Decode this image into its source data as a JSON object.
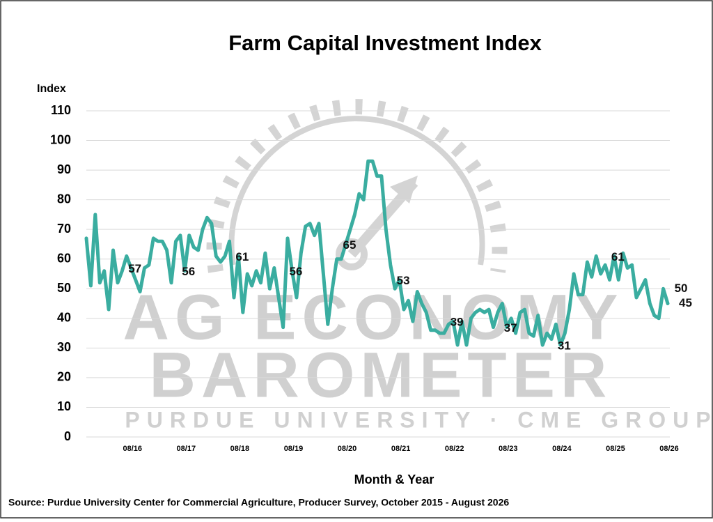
{
  "chart_data": {
    "type": "line",
    "title": "Farm Capital Investment Index",
    "y_axis_label": "Index",
    "x_axis_label": "Month & Year",
    "source": "Source: Purdue University Center for Commercial Agriculture, Producer Survey, October 2015 - August 2026",
    "watermark": [
      "AG ECONOMY",
      "BAROMETER",
      "PURDUE UNIVERSITY · CME GROUP"
    ],
    "ylim": [
      0,
      110
    ],
    "yticks": [
      0,
      10,
      20,
      30,
      40,
      50,
      60,
      70,
      80,
      90,
      100,
      110
    ],
    "grid": true,
    "categories": [
      null,
      null,
      null,
      null,
      null,
      null,
      null,
      null,
      null,
      null,
      "08/16",
      null,
      null,
      null,
      null,
      null,
      null,
      null,
      null,
      null,
      null,
      null,
      "08/17",
      null,
      null,
      null,
      null,
      null,
      null,
      null,
      null,
      null,
      null,
      null,
      "08/18",
      null,
      null,
      null,
      null,
      null,
      null,
      null,
      null,
      null,
      null,
      null,
      "08/19",
      null,
      null,
      null,
      null,
      null,
      null,
      null,
      null,
      null,
      null,
      null,
      "08/20",
      null,
      null,
      null,
      null,
      null,
      null,
      null,
      null,
      null,
      null,
      null,
      "08/21",
      null,
      null,
      null,
      null,
      null,
      null,
      null,
      null,
      null,
      null,
      null,
      "08/22",
      null,
      null,
      null,
      null,
      null,
      null,
      null,
      null,
      null,
      null,
      null,
      "08/23",
      null,
      null,
      null,
      null,
      null,
      null,
      null,
      null,
      null,
      null,
      null,
      "08/24",
      null,
      null,
      null,
      null,
      null,
      null,
      null,
      null,
      null,
      null,
      null,
      "08/25",
      null,
      null,
      null,
      null,
      null,
      null,
      null,
      null,
      null,
      null,
      null,
      "08/26"
    ],
    "series": [
      {
        "name": "Farm Capital Investment Index",
        "color": "#3aada0",
        "values": [
          67,
          51,
          75,
          52,
          56,
          43,
          63,
          52,
          56,
          61,
          57,
          53,
          49,
          57,
          58,
          67,
          66,
          66,
          63,
          52,
          66,
          68,
          56,
          68,
          64,
          63,
          70,
          74,
          72,
          61,
          59,
          61,
          66,
          47,
          61,
          42,
          55,
          51,
          56,
          52,
          62,
          50,
          57,
          47,
          37,
          67,
          56,
          47,
          62,
          71,
          72,
          68,
          72,
          55,
          38,
          50,
          60,
          60,
          65,
          70,
          75,
          82,
          80,
          93,
          93,
          88,
          88,
          70,
          58,
          50,
          53,
          43,
          46,
          39,
          49,
          45,
          42,
          36,
          36,
          35,
          35,
          38,
          39,
          31,
          39,
          31,
          40,
          42,
          43,
          42,
          43,
          37,
          42,
          45,
          37,
          40,
          35,
          42,
          43,
          35,
          34,
          41,
          31,
          35,
          33,
          38,
          31,
          35,
          43,
          55,
          48,
          48,
          59,
          54,
          61,
          55,
          58,
          53,
          61,
          53,
          62,
          57,
          58,
          47,
          50,
          53,
          45,
          41,
          40,
          50,
          45
        ],
        "point_labels": [
          null,
          null,
          null,
          null,
          null,
          null,
          null,
          null,
          null,
          null,
          57,
          null,
          null,
          null,
          null,
          null,
          null,
          null,
          null,
          null,
          null,
          null,
          56,
          null,
          null,
          null,
          null,
          null,
          null,
          null,
          null,
          null,
          null,
          null,
          61,
          null,
          null,
          null,
          null,
          null,
          null,
          null,
          null,
          null,
          null,
          null,
          56,
          null,
          null,
          null,
          null,
          null,
          null,
          null,
          null,
          null,
          null,
          null,
          65,
          null,
          null,
          null,
          null,
          null,
          null,
          null,
          null,
          null,
          null,
          null,
          53,
          null,
          null,
          null,
          null,
          null,
          null,
          null,
          null,
          null,
          null,
          null,
          39,
          null,
          null,
          null,
          null,
          null,
          null,
          null,
          null,
          null,
          null,
          null,
          37,
          null,
          null,
          null,
          null,
          null,
          null,
          null,
          null,
          null,
          null,
          null,
          31,
          null,
          null,
          null,
          null,
          null,
          null,
          null,
          null,
          null,
          null,
          null,
          61,
          null,
          null,
          null,
          null,
          null,
          null,
          null,
          null,
          null,
          null,
          50,
          45
        ]
      }
    ]
  }
}
